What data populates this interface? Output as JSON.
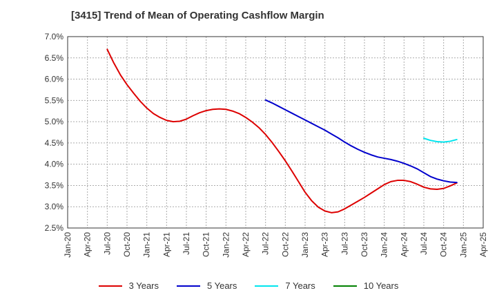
{
  "title": "[3415]  Trend of Mean of Operating Cashflow Margin",
  "chart_data": {
    "type": "line",
    "title": "[3415]  Trend of Mean of Operating Cashflow Margin",
    "xlabel": "",
    "ylabel": "",
    "x_ticks": [
      "Jan-20",
      "Apr-20",
      "Jul-20",
      "Oct-20",
      "Jan-21",
      "Apr-21",
      "Jul-21",
      "Oct-21",
      "Jan-22",
      "Apr-22",
      "Jul-22",
      "Oct-22",
      "Jan-23",
      "Apr-23",
      "Jul-23",
      "Oct-23",
      "Jan-24",
      "Apr-24",
      "Jul-24",
      "Oct-24",
      "Jan-25",
      "Apr-25"
    ],
    "y_ticks": [
      "2.5%",
      "3.0%",
      "3.5%",
      "4.0%",
      "4.5%",
      "5.0%",
      "5.5%",
      "6.0%",
      "6.5%",
      "7.0%"
    ],
    "ylim": [
      2.5,
      7.0
    ],
    "y_unit": "%",
    "grid": true,
    "legend_position": "bottom",
    "series": [
      {
        "name": "3 Years",
        "color": "#dd0000",
        "points": [
          [
            "Jul-20",
            6.7
          ],
          [
            "Aug-20",
            6.38
          ],
          [
            "Sep-20",
            6.1
          ],
          [
            "Oct-20",
            5.87
          ],
          [
            "Nov-20",
            5.67
          ],
          [
            "Dec-20",
            5.48
          ],
          [
            "Jan-21",
            5.32
          ],
          [
            "Feb-21",
            5.19
          ],
          [
            "Mar-21",
            5.1
          ],
          [
            "Apr-21",
            5.03
          ],
          [
            "May-21",
            5.0
          ],
          [
            "Jun-21",
            5.01
          ],
          [
            "Jul-21",
            5.06
          ],
          [
            "Aug-21",
            5.14
          ],
          [
            "Sep-21",
            5.21
          ],
          [
            "Oct-21",
            5.26
          ],
          [
            "Nov-21",
            5.29
          ],
          [
            "Dec-21",
            5.3
          ],
          [
            "Jan-22",
            5.29
          ],
          [
            "Feb-22",
            5.25
          ],
          [
            "Mar-22",
            5.19
          ],
          [
            "Apr-22",
            5.1
          ],
          [
            "May-22",
            4.99
          ],
          [
            "Jun-22",
            4.86
          ],
          [
            "Jul-22",
            4.7
          ],
          [
            "Aug-22",
            4.51
          ],
          [
            "Sep-22",
            4.3
          ],
          [
            "Oct-22",
            4.08
          ],
          [
            "Nov-22",
            3.84
          ],
          [
            "Dec-22",
            3.59
          ],
          [
            "Jan-23",
            3.34
          ],
          [
            "Feb-23",
            3.14
          ],
          [
            "Mar-23",
            2.99
          ],
          [
            "Apr-23",
            2.9
          ],
          [
            "May-23",
            2.86
          ],
          [
            "Jun-23",
            2.88
          ],
          [
            "Jul-23",
            2.95
          ],
          [
            "Aug-23",
            3.04
          ],
          [
            "Sep-23",
            3.13
          ],
          [
            "Oct-23",
            3.22
          ],
          [
            "Nov-23",
            3.32
          ],
          [
            "Dec-23",
            3.42
          ],
          [
            "Jan-24",
            3.52
          ],
          [
            "Feb-24",
            3.59
          ],
          [
            "Mar-24",
            3.62
          ],
          [
            "Apr-24",
            3.62
          ],
          [
            "May-24",
            3.59
          ],
          [
            "Jun-24",
            3.53
          ],
          [
            "Jul-24",
            3.46
          ],
          [
            "Aug-24",
            3.42
          ],
          [
            "Sep-24",
            3.41
          ],
          [
            "Oct-24",
            3.43
          ],
          [
            "Nov-24",
            3.49
          ],
          [
            "Dec-24",
            3.56
          ]
        ]
      },
      {
        "name": "5 Years",
        "color": "#0000cc",
        "points": [
          [
            "Jul-22",
            5.51
          ],
          [
            "Aug-22",
            5.44
          ],
          [
            "Sep-22",
            5.36
          ],
          [
            "Oct-22",
            5.28
          ],
          [
            "Nov-22",
            5.2
          ],
          [
            "Dec-22",
            5.12
          ],
          [
            "Jan-23",
            5.04
          ],
          [
            "Feb-23",
            4.96
          ],
          [
            "Mar-23",
            4.88
          ],
          [
            "Apr-23",
            4.8
          ],
          [
            "May-23",
            4.71
          ],
          [
            "Jun-23",
            4.62
          ],
          [
            "Jul-23",
            4.52
          ],
          [
            "Aug-23",
            4.43
          ],
          [
            "Sep-23",
            4.35
          ],
          [
            "Oct-23",
            4.28
          ],
          [
            "Nov-23",
            4.22
          ],
          [
            "Dec-23",
            4.17
          ],
          [
            "Jan-24",
            4.14
          ],
          [
            "Feb-24",
            4.11
          ],
          [
            "Mar-24",
            4.07
          ],
          [
            "Apr-24",
            4.02
          ],
          [
            "May-24",
            3.96
          ],
          [
            "Jun-24",
            3.89
          ],
          [
            "Jul-24",
            3.8
          ],
          [
            "Aug-24",
            3.71
          ],
          [
            "Sep-24",
            3.65
          ],
          [
            "Oct-24",
            3.61
          ],
          [
            "Nov-24",
            3.58
          ],
          [
            "Dec-24",
            3.57
          ]
        ]
      },
      {
        "name": "7 Years",
        "color": "#00e5ee",
        "points": [
          [
            "Jul-24",
            4.61
          ],
          [
            "Aug-24",
            4.56
          ],
          [
            "Sep-24",
            4.53
          ],
          [
            "Oct-24",
            4.52
          ],
          [
            "Nov-24",
            4.54
          ],
          [
            "Dec-24",
            4.58
          ]
        ]
      },
      {
        "name": "10 Years",
        "color": "#008000",
        "points": []
      }
    ]
  }
}
